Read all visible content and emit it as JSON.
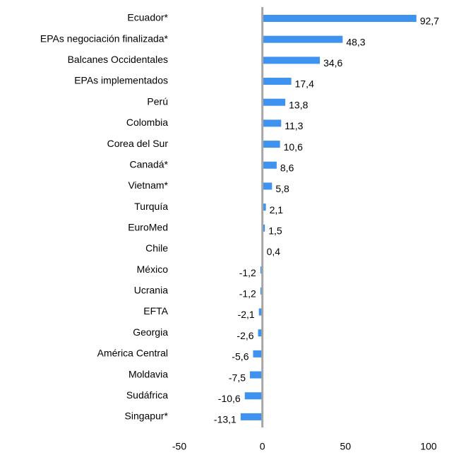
{
  "chart_data": {
    "type": "bar",
    "orientation": "horizontal",
    "categories": [
      "Ecuador*",
      "EPAs negociación finalizada*",
      "Balcanes Occidentales",
      "EPAs implementados",
      "Perú",
      "Colombia",
      "Corea del Sur",
      "Canadá*",
      "Vietnam*",
      "Turquía",
      "EuroMed",
      "Chile",
      "México",
      "Ucrania",
      "EFTA",
      "Georgia",
      "América Central",
      "Moldavia",
      "Sudáfrica",
      "Singapur*"
    ],
    "values": [
      92.7,
      48.3,
      34.6,
      17.4,
      13.8,
      11.3,
      10.6,
      8.6,
      5.8,
      2.1,
      1.5,
      0.4,
      -1.2,
      -1.2,
      -2.1,
      -2.6,
      -5.6,
      -7.5,
      -10.6,
      -13.1
    ],
    "value_labels": [
      "92,7",
      "48,3",
      "34,6",
      "17,4",
      "13,8",
      "11,3",
      "10,6",
      "8,6",
      "5,8",
      "2,1",
      "1,5",
      "0,4",
      "-1,2",
      "-1,2",
      "-2,1",
      "-2,6",
      "-5,6",
      "-7,5",
      "-10,6",
      "-13,1"
    ],
    "color": "#3f93f0",
    "xlim": [
      -50,
      100
    ],
    "xticks": [
      -50,
      0,
      50,
      100
    ],
    "grid": false
  }
}
